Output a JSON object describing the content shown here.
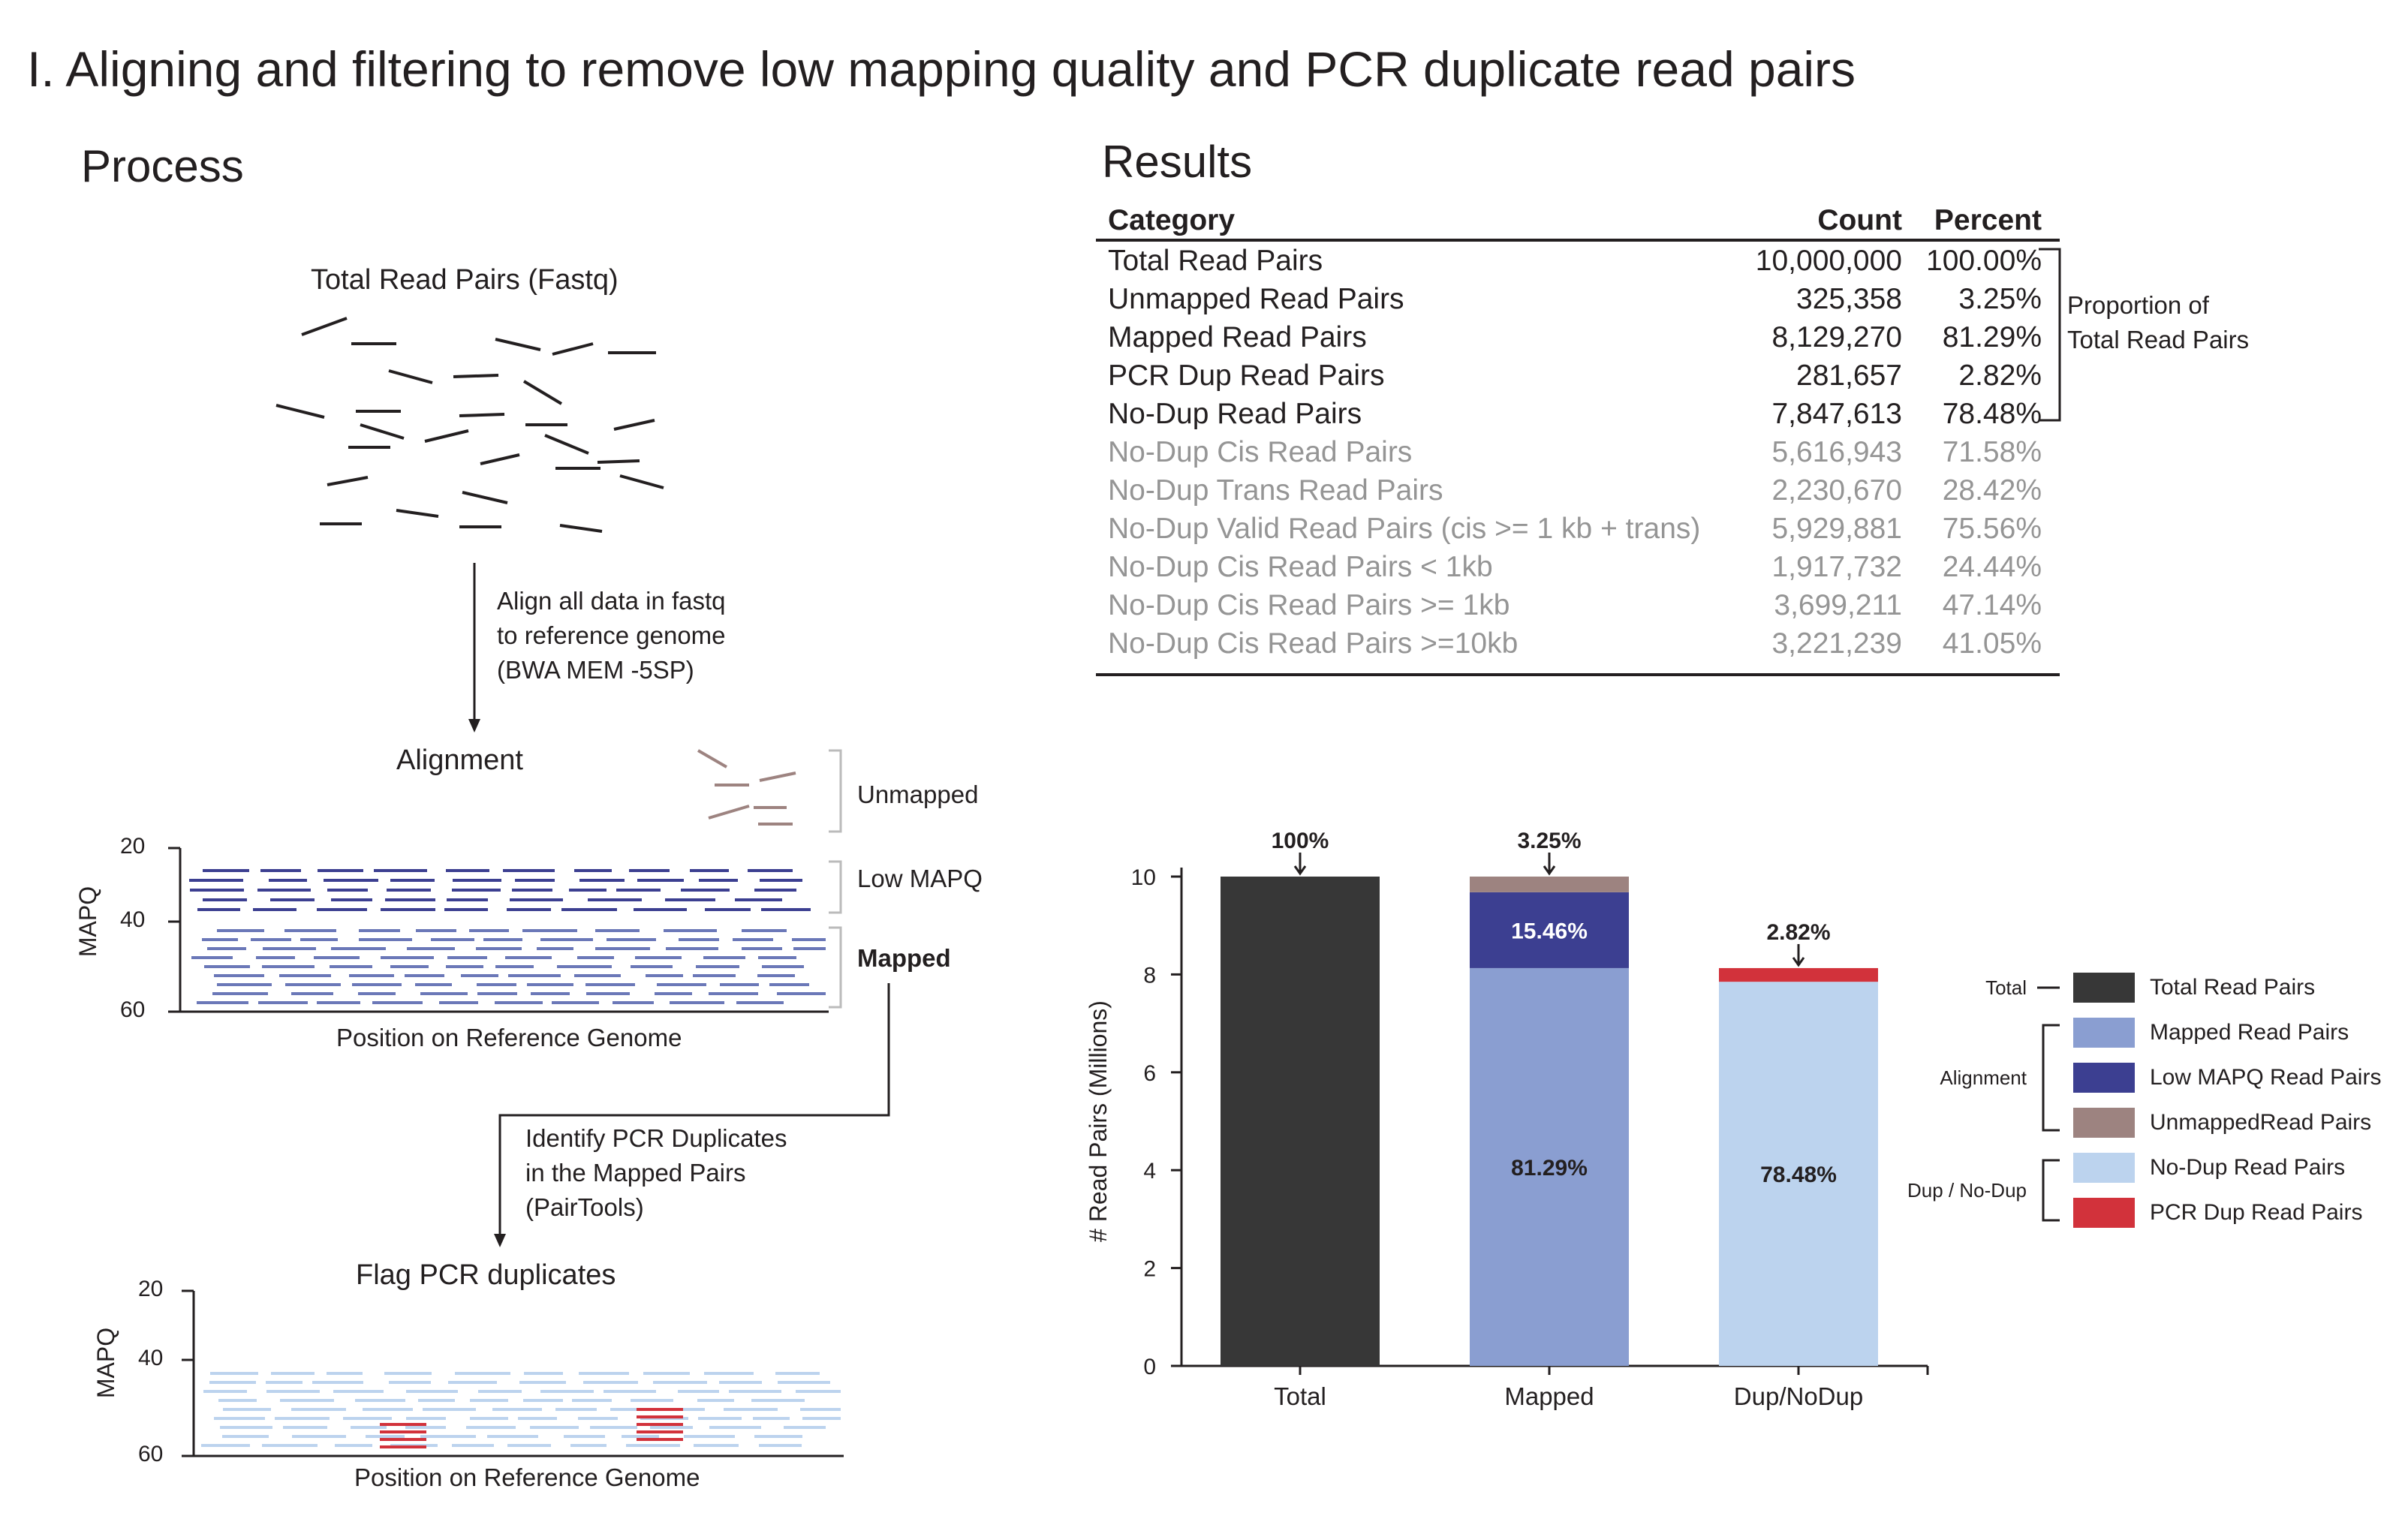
{
  "title": "I. Aligning and filtering to remove low mapping quality and PCR duplicate read pairs",
  "process": {
    "heading": "Process",
    "total_label": "Total Read Pairs (Fastq)",
    "align_step": [
      "Align all data in fastq",
      "to reference genome",
      "(BWA MEM -5SP)"
    ],
    "alignment_label": "Alignment",
    "groups": [
      "Unmapped",
      "Low MAPQ",
      "Mapped"
    ],
    "mapq_axis_label": "MAPQ",
    "mapq_ticks": [
      "20",
      "40",
      "60"
    ],
    "position_label": "Position on Reference Genome",
    "dup_step": [
      "Identify PCR Duplicates",
      "in the Mapped Pairs",
      "(PairTools)"
    ],
    "flag_label": "Flag PCR duplicates"
  },
  "results": {
    "heading": "Results",
    "columns": [
      "Category",
      "Count",
      "Percent"
    ],
    "rows": [
      {
        "category": "Total Read Pairs",
        "count": "10,000,000",
        "percent": "100.00%",
        "style": "dark"
      },
      {
        "category": "Unmapped Read Pairs",
        "count": "325,358",
        "percent": "3.25%",
        "style": "dark"
      },
      {
        "category": "Mapped Read Pairs",
        "count": "8,129,270",
        "percent": "81.29%",
        "style": "dark"
      },
      {
        "category": "PCR Dup Read Pairs",
        "count": "281,657",
        "percent": "2.82%",
        "style": "dark"
      },
      {
        "category": "No-Dup Read Pairs",
        "count": "7,847,613",
        "percent": "78.48%",
        "style": "dark"
      },
      {
        "category": "No-Dup Cis Read Pairs",
        "count": "5,616,943",
        "percent": "71.58%",
        "style": "grey"
      },
      {
        "category": "No-Dup Trans Read Pairs",
        "count": "2,230,670",
        "percent": "28.42%",
        "style": "grey"
      },
      {
        "category": "No-Dup Valid Read Pairs (cis >= 1 kb + trans)",
        "count": "5,929,881",
        "percent": "75.56%",
        "style": "grey"
      },
      {
        "category": "No-Dup Cis Read Pairs < 1kb",
        "count": "1,917,732",
        "percent": "24.44%",
        "style": "grey"
      },
      {
        "category": "No-Dup Cis Read Pairs >= 1kb",
        "count": "3,699,211",
        "percent": "47.14%",
        "style": "grey"
      },
      {
        "category": "No-Dup Cis Read Pairs >=10kb",
        "count": "3,221,239",
        "percent": "41.05%",
        "style": "grey"
      }
    ],
    "bracket_note": "Proportion of Total Read Pairs"
  },
  "chart_data": {
    "type": "bar",
    "title": "",
    "xlabel": "",
    "ylabel": "# Read Pairs (Millions)",
    "ylim": [
      0,
      10
    ],
    "yticks": [
      0,
      2,
      4,
      6,
      8,
      10
    ],
    "categories": [
      "Total",
      "Mapped",
      "Dup/NoDup"
    ],
    "segments": [
      {
        "category": "Total",
        "series": "Total Read Pairs",
        "bottom": 0,
        "value": 10.0,
        "label": ""
      },
      {
        "category": "Mapped",
        "series": "Mapped Read Pairs",
        "bottom": 0,
        "value": 8.13,
        "label": "81.29%"
      },
      {
        "category": "Mapped",
        "series": "Low MAPQ Read Pairs",
        "bottom": 8.13,
        "value": 1.55,
        "label": "15.46%"
      },
      {
        "category": "Mapped",
        "series": "UnmappedRead Pairs",
        "bottom": 9.68,
        "value": 0.32,
        "label": ""
      },
      {
        "category": "Dup/NoDup",
        "series": "No-Dup Read Pairs",
        "bottom": 0,
        "value": 7.85,
        "label": "78.48%"
      },
      {
        "category": "Dup/NoDup",
        "series": "PCR Dup Read Pairs",
        "bottom": 7.85,
        "value": 0.28,
        "label": ""
      }
    ],
    "top_annotations": [
      {
        "category": "Total",
        "text": "100%",
        "y": 10.0
      },
      {
        "category": "Mapped",
        "text": "3.25%",
        "y": 10.0
      },
      {
        "category": "Dup/NoDup",
        "text": "2.82%",
        "y": 8.13
      }
    ],
    "legend": {
      "placement": "right",
      "groups": [
        {
          "name": "Total",
          "items": [
            "Total Read Pairs"
          ]
        },
        {
          "name": "Alignment",
          "items": [
            "Mapped Read Pairs",
            "Low MAPQ Read Pairs",
            "UnmappedRead Pairs"
          ]
        },
        {
          "name": "Dup / No-Dup",
          "items": [
            "No-Dup Read Pairs",
            "PCR Dup Read Pairs"
          ]
        }
      ]
    },
    "colors": {
      "Total Read Pairs": "#373737",
      "Mapped Read Pairs": "#8a9ed1",
      "Low MAPQ Read Pairs": "#3c3f91",
      "UnmappedRead Pairs": "#9d8380",
      "No-Dup Read Pairs": "#bcd3ee",
      "PCR Dup Read Pairs": "#d2323b"
    }
  }
}
